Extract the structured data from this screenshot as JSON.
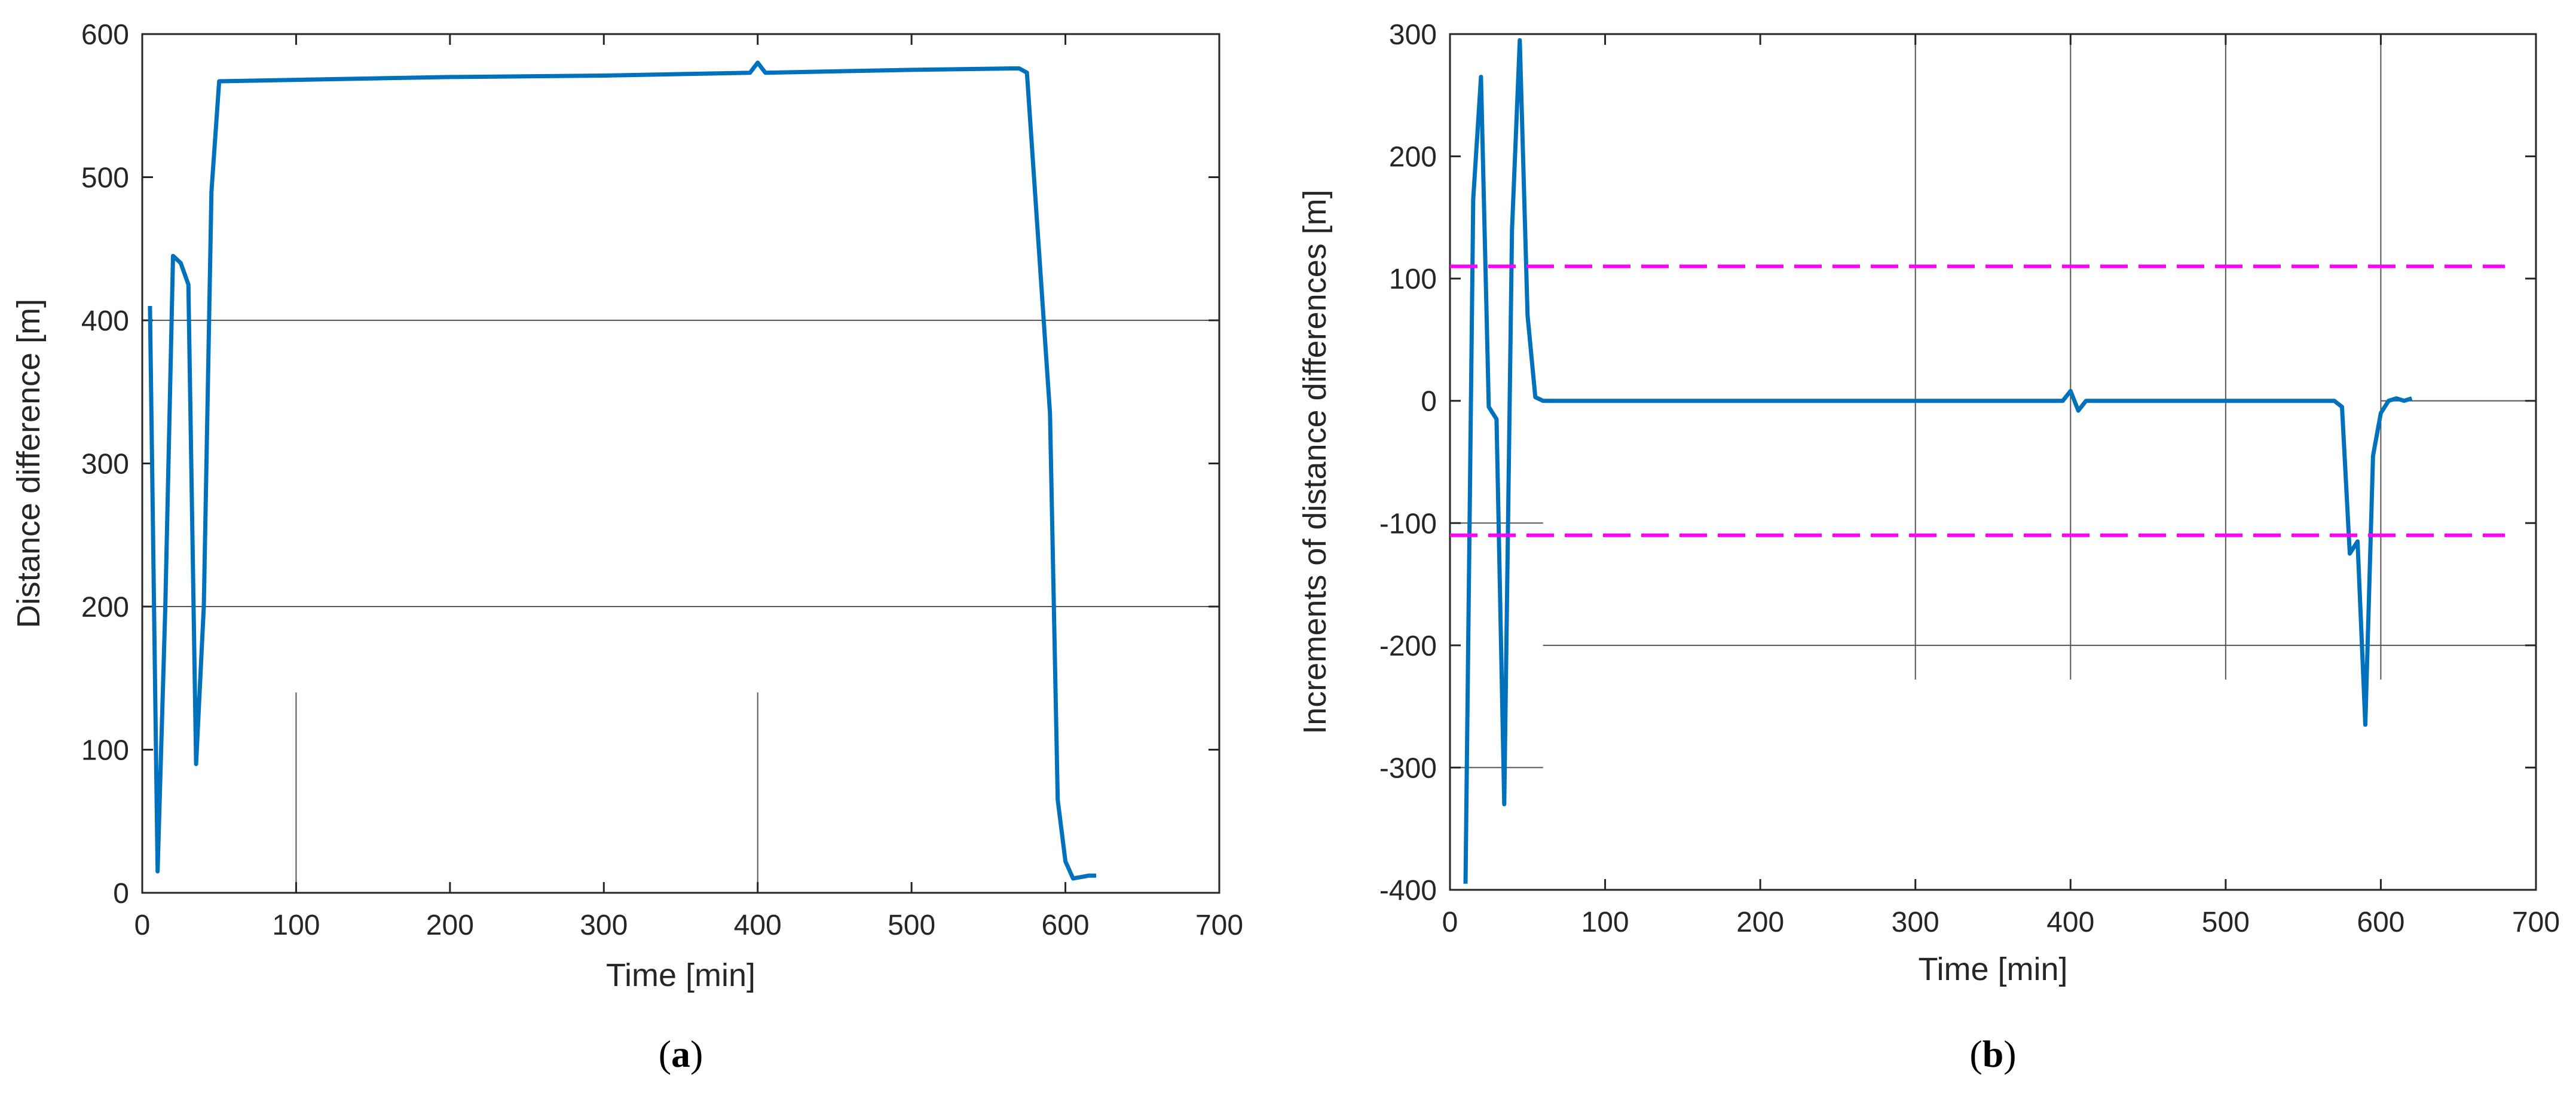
{
  "chart_data": [
    {
      "type": "line",
      "panel_label": "(a)",
      "xlabel": "Time [min]",
      "ylabel": "Distance difference [m]",
      "xlim": [
        0,
        700
      ],
      "ylim": [
        0,
        600
      ],
      "xticks": [
        0,
        100,
        200,
        300,
        400,
        500,
        600,
        700
      ],
      "yticks": [
        0,
        100,
        200,
        300,
        400,
        500,
        600
      ],
      "grid": "partial",
      "series": [
        {
          "color": "#0072BD",
          "style": "solid",
          "x": [
            5,
            10,
            15,
            20,
            25,
            30,
            35,
            40,
            45,
            50,
            100,
            200,
            300,
            395,
            400,
            405,
            500,
            565,
            570,
            575,
            590,
            595,
            600,
            605,
            610,
            615,
            620
          ],
          "y": [
            410,
            15,
            200,
            445,
            440,
            425,
            90,
            200,
            490,
            567,
            568,
            570,
            571,
            573,
            580,
            573,
            575,
            576,
            576,
            573,
            335,
            65,
            22,
            10,
            11,
            12,
            12
          ]
        }
      ]
    },
    {
      "type": "line",
      "panel_label": "(b)",
      "xlabel": "Time [min]",
      "ylabel": "Increments of distance differences [m]",
      "xlim": [
        0,
        700
      ],
      "ylim": [
        -400,
        300
      ],
      "xticks": [
        0,
        100,
        200,
        300,
        400,
        500,
        600,
        700
      ],
      "yticks": [
        -400,
        -300,
        -200,
        -100,
        0,
        100,
        200,
        300
      ],
      "grid": "partial",
      "series": [
        {
          "color": "#0072BD",
          "style": "solid",
          "x": [
            10,
            15,
            20,
            25,
            30,
            35,
            40,
            45,
            50,
            55,
            60,
            100,
            200,
            300,
            395,
            400,
            405,
            410,
            500,
            570,
            575,
            580,
            585,
            590,
            595,
            600,
            605,
            610,
            615,
            620
          ],
          "y": [
            -395,
            165,
            265,
            -5,
            -15,
            -330,
            140,
            295,
            70,
            3,
            0,
            0,
            0,
            0,
            0,
            8,
            -8,
            0,
            0,
            0,
            -5,
            -125,
            -115,
            -265,
            -45,
            -10,
            0,
            2,
            0,
            2
          ]
        },
        {
          "color": "#FF00FF",
          "style": "dashed",
          "x": [
            0,
            680
          ],
          "y": [
            110,
            110
          ]
        },
        {
          "color": "#FF00FF",
          "style": "dashed",
          "x": [
            0,
            680
          ],
          "y": [
            -110,
            -110
          ]
        }
      ]
    }
  ]
}
